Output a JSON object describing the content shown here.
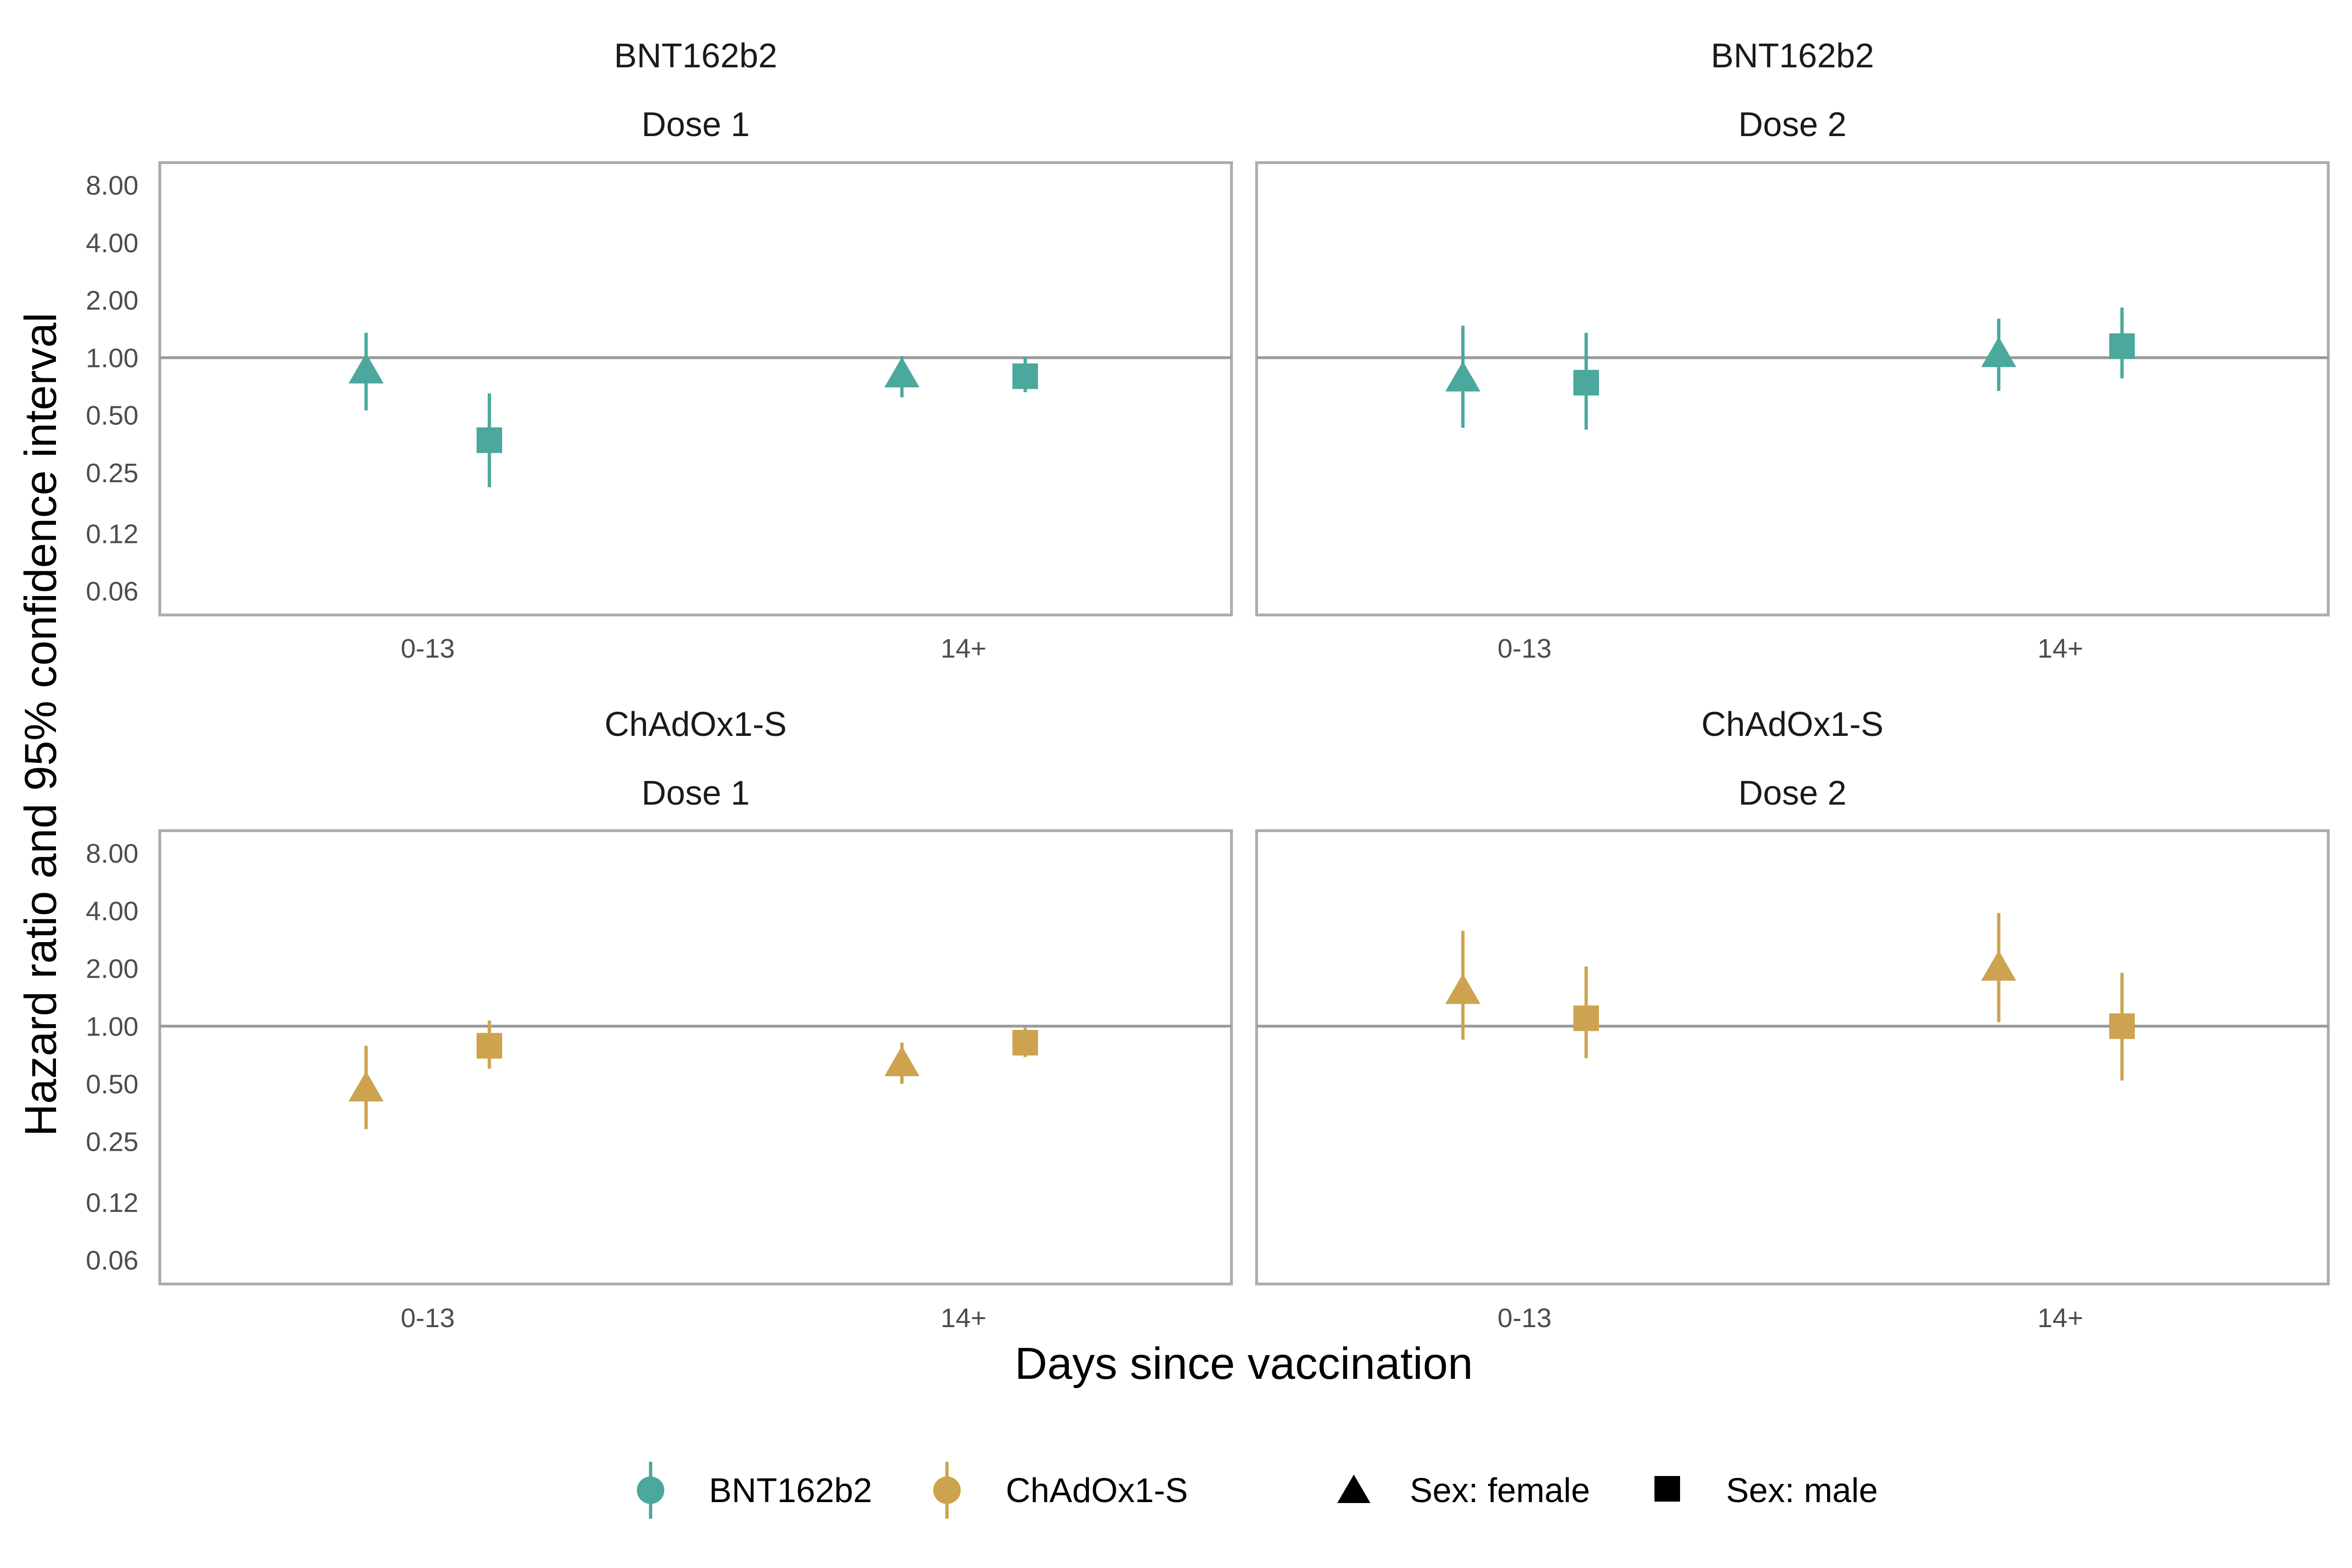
{
  "colors": {
    "BNT162b2": "#4BA89D",
    "ChAdOx1-S": "#CDA34F",
    "panel_border": "#ADADAD",
    "reference_line": "#9A9A9A"
  },
  "chart_data": {
    "type": "scatter",
    "subtype": "faceted point-range (hazard ratio with 95% CI)",
    "xlabel": "Days since vaccination",
    "ylabel": "Hazard ratio and 95% confidence interval",
    "y_scale": "log2",
    "ylim": [
      0.045,
      10.5
    ],
    "y_ticks": [
      0.06,
      0.12,
      0.25,
      0.5,
      1,
      2,
      4,
      8
    ],
    "y_tick_labels": [
      "0.06",
      "0.12",
      "0.25",
      "0.50",
      "1.00",
      "2.00",
      "4.00",
      "8.00"
    ],
    "categories": [
      "0-13",
      "14+"
    ],
    "reference_line": 1,
    "grid": false,
    "legend_position": "bottom",
    "legend": {
      "vaccines": [
        "BNT162b2",
        "ChAdOx1-S"
      ],
      "sexes": [
        "Sex: female",
        "Sex: male"
      ]
    },
    "panels": [
      {
        "vaccine": "BNT162b2",
        "dose": "Dose 1",
        "points": [
          {
            "period": "0-13",
            "sex": "female",
            "hr": 0.87,
            "lo": 0.53,
            "hi": 1.35
          },
          {
            "period": "0-13",
            "sex": "male",
            "hr": 0.37,
            "lo": 0.21,
            "hi": 0.65
          },
          {
            "period": "14+",
            "sex": "female",
            "hr": 0.83,
            "lo": 0.62,
            "hi": 1.02
          },
          {
            "period": "14+",
            "sex": "male",
            "hr": 0.8,
            "lo": 0.66,
            "hi": 1.01
          }
        ]
      },
      {
        "vaccine": "BNT162b2",
        "dose": "Dose 2",
        "points": [
          {
            "period": "0-13",
            "sex": "female",
            "hr": 0.79,
            "lo": 0.43,
            "hi": 1.47
          },
          {
            "period": "0-13",
            "sex": "male",
            "hr": 0.74,
            "lo": 0.42,
            "hi": 1.35
          },
          {
            "period": "14+",
            "sex": "female",
            "hr": 1.06,
            "lo": 0.67,
            "hi": 1.6
          },
          {
            "period": "14+",
            "sex": "male",
            "hr": 1.15,
            "lo": 0.78,
            "hi": 1.83
          }
        ]
      },
      {
        "vaccine": "ChAdOx1-S",
        "dose": "Dose 1",
        "points": [
          {
            "period": "0-13",
            "sex": "female",
            "hr": 0.48,
            "lo": 0.29,
            "hi": 0.79
          },
          {
            "period": "0-13",
            "sex": "male",
            "hr": 0.79,
            "lo": 0.6,
            "hi": 1.07
          },
          {
            "period": "14+",
            "sex": "female",
            "hr": 0.65,
            "lo": 0.5,
            "hi": 0.82
          },
          {
            "period": "14+",
            "sex": "male",
            "hr": 0.82,
            "lo": 0.69,
            "hi": 0.98
          }
        ]
      },
      {
        "vaccine": "ChAdOx1-S",
        "dose": "Dose 2",
        "points": [
          {
            "period": "0-13",
            "sex": "female",
            "hr": 1.55,
            "lo": 0.85,
            "hi": 3.15
          },
          {
            "period": "0-13",
            "sex": "male",
            "hr": 1.1,
            "lo": 0.68,
            "hi": 2.05
          },
          {
            "period": "14+",
            "sex": "female",
            "hr": 2.05,
            "lo": 1.05,
            "hi": 3.9
          },
          {
            "period": "14+",
            "sex": "male",
            "hr": 1.0,
            "lo": 0.52,
            "hi": 1.9
          }
        ]
      }
    ]
  }
}
